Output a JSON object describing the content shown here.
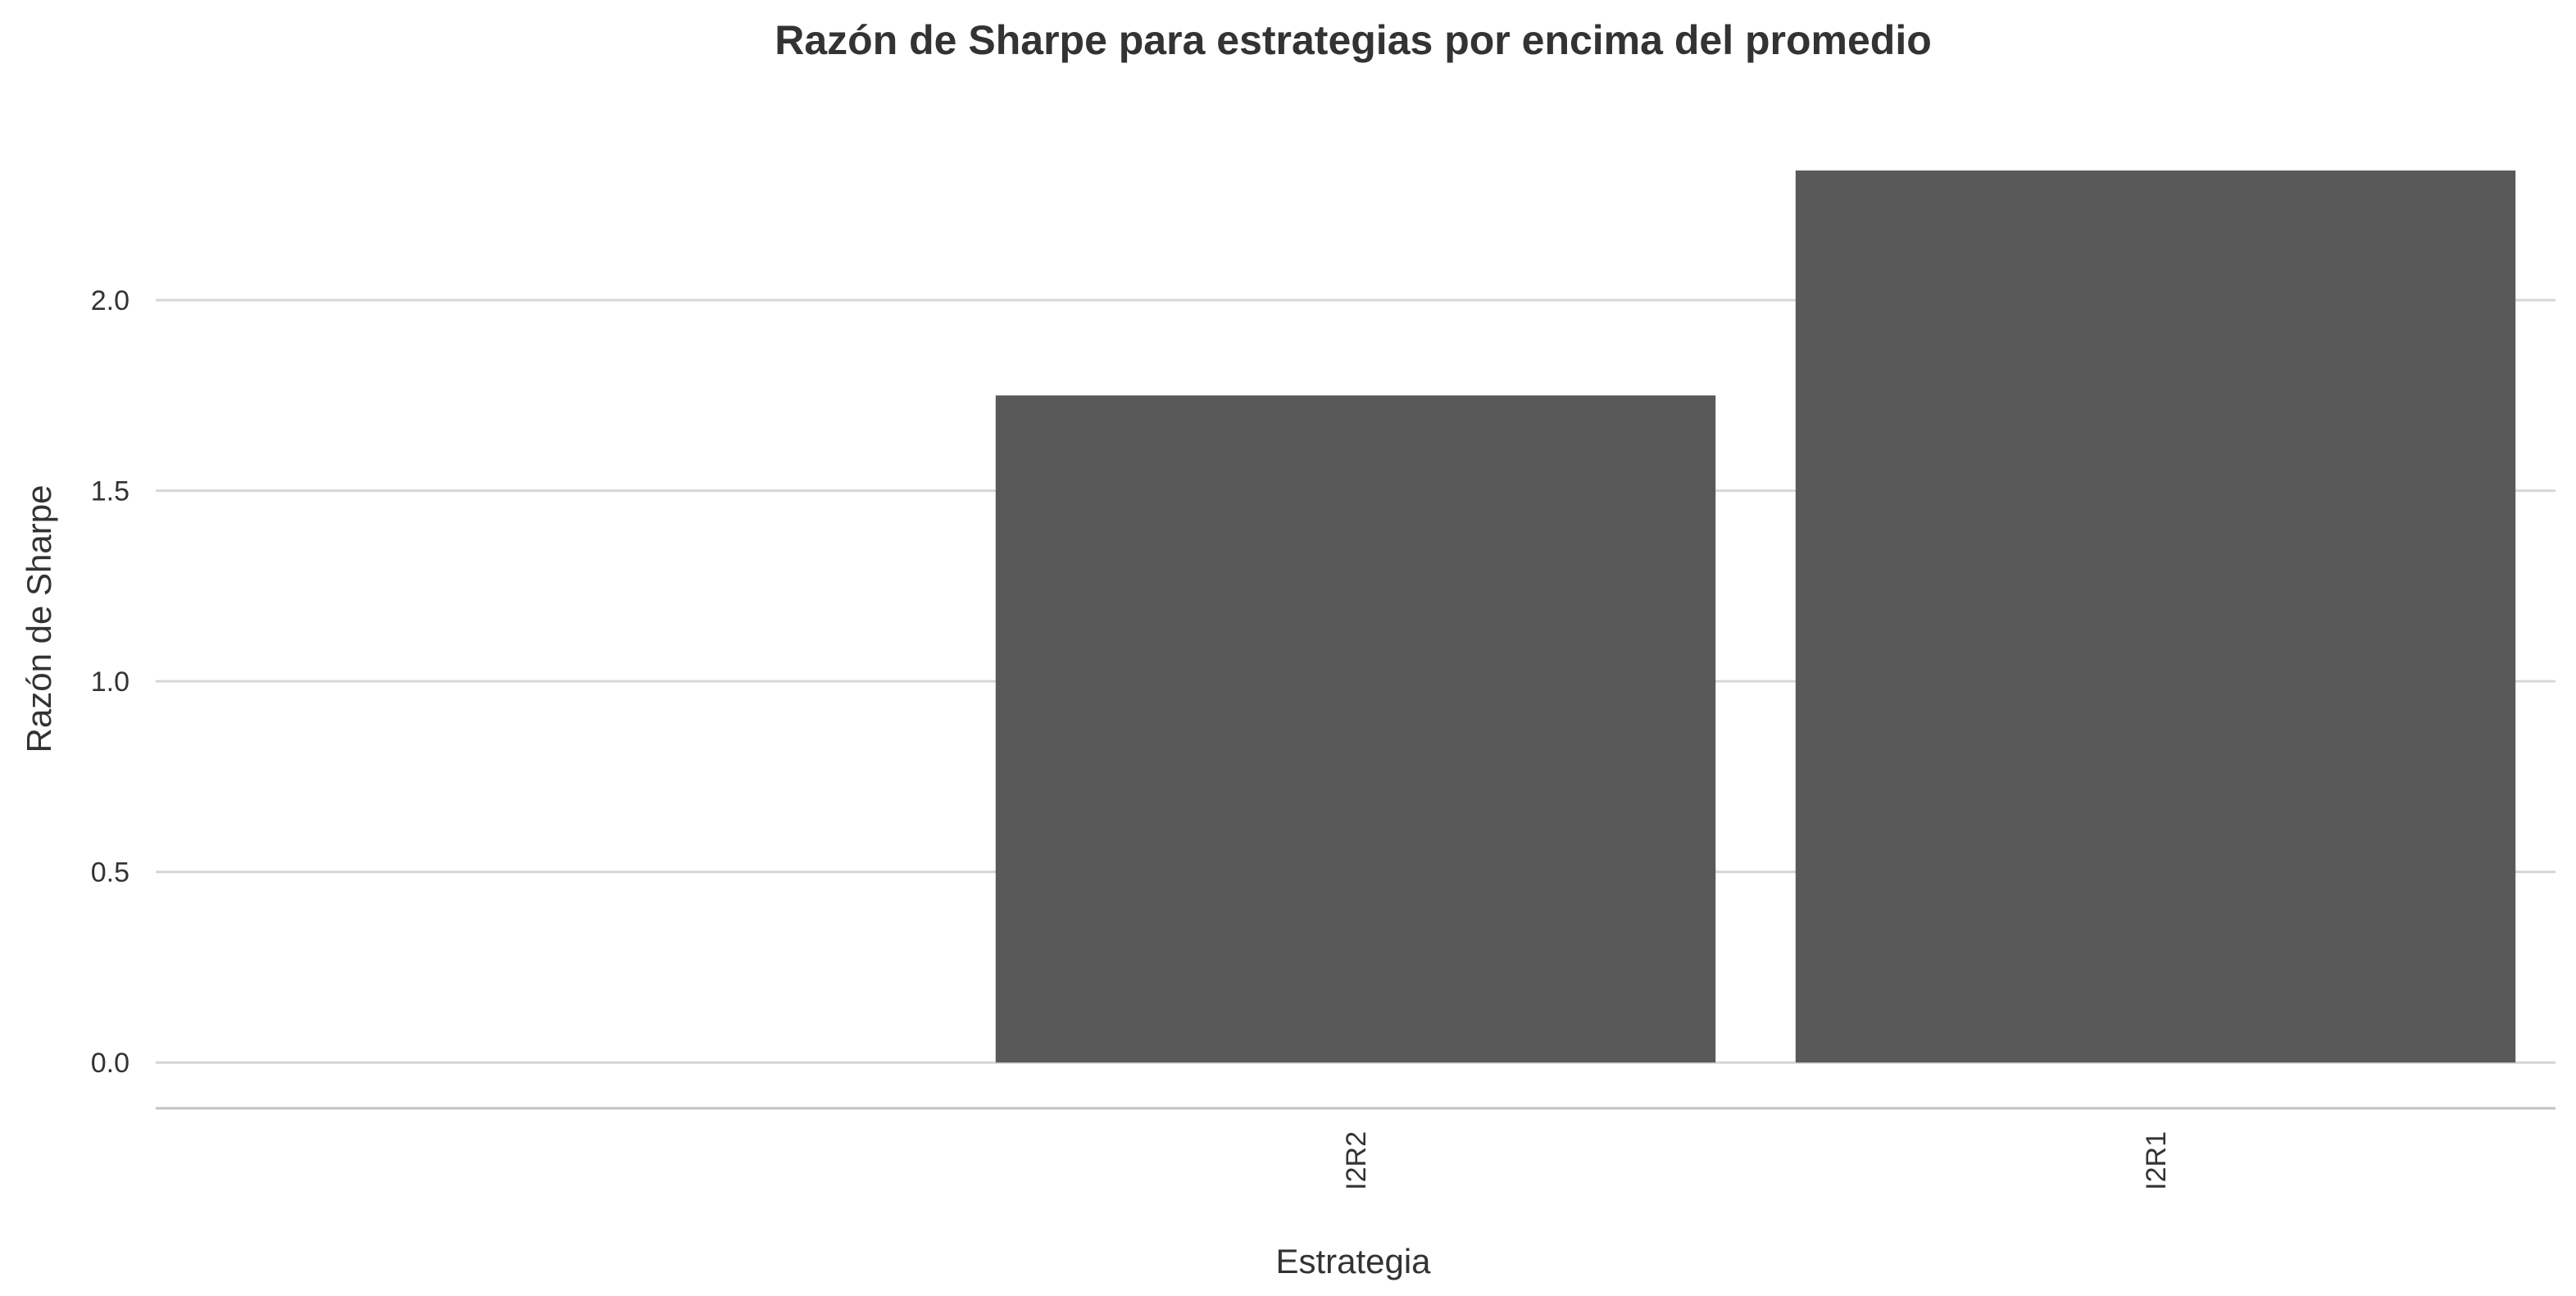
{
  "chart_data": {
    "type": "bar",
    "title": "Razón de Sharpe para estrategias por encima del promedio",
    "xlabel": "Estrategia",
    "ylabel": "Razón de Sharpe",
    "categories": [
      "",
      "I2R2",
      "I2R1"
    ],
    "values": [
      null,
      1.75,
      2.34
    ],
    "ylim": [
      -0.12,
      2.34
    ],
    "yticks": [
      "0.0",
      "0.5",
      "1.0",
      "1.5",
      "2.0"
    ],
    "grid": true,
    "legend": "none",
    "bar_color": "#595959",
    "grid_color": "#d6d6d6"
  }
}
